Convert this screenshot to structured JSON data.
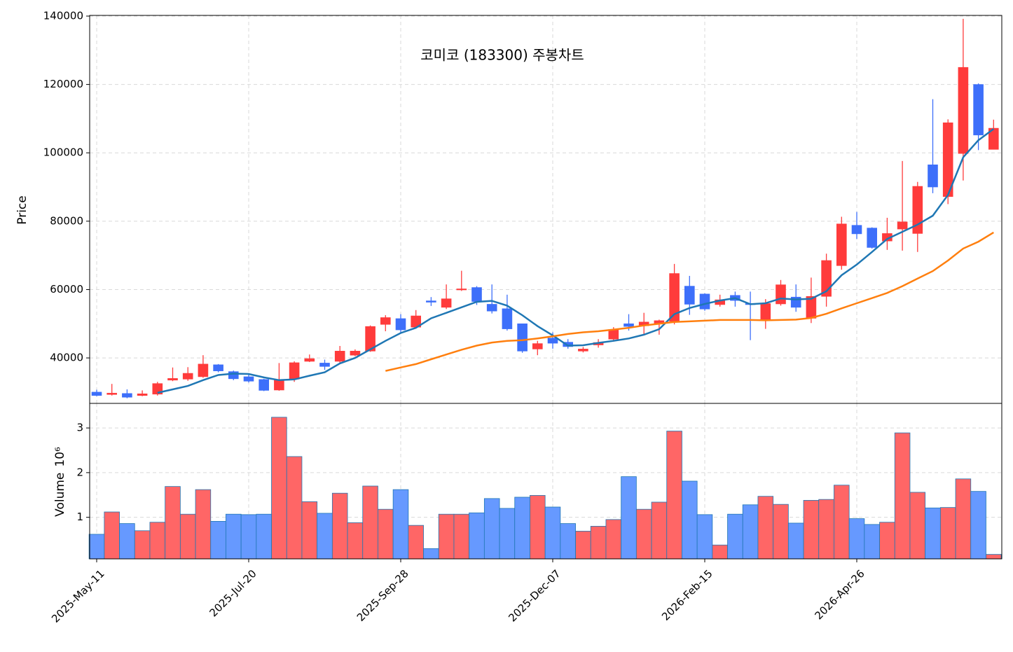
{
  "chart_data": [
    {
      "type": "candlestick",
      "title": "코미코 (183300) 주봉차트",
      "ylabel": "Price",
      "ylim": [
        26700,
        140200
      ],
      "yticks": [
        40000,
        60000,
        80000,
        100000,
        120000,
        140000
      ],
      "grid": true,
      "up_color": "#ff3b3b",
      "down_color": "#3d6ffa",
      "open": [
        30000,
        29300,
        29600,
        29000,
        29400,
        33500,
        33800,
        34500,
        38000,
        36000,
        34500,
        33700,
        30600,
        33800,
        39000,
        38500,
        39000,
        40800,
        42000,
        49800,
        51500,
        49000,
        56700,
        54800,
        59900,
        60600,
        55700,
        54400,
        50000,
        42600,
        45800,
        44600,
        42000,
        43800,
        45500,
        50000,
        49400,
        50000,
        50700,
        61000,
        58700,
        55600,
        58300,
        55900,
        51000,
        55800,
        57800,
        51600,
        58000,
        67000,
        78800,
        78000,
        74200,
        77700,
        76400,
        96500,
        87200,
        99800,
        120000,
        101000
      ],
      "high": [
        30700,
        32400,
        30800,
        30500,
        33000,
        37200,
        37300,
        40800,
        38200,
        36300,
        35200,
        33900,
        38500,
        39000,
        41000,
        39500,
        43500,
        42500,
        49500,
        52500,
        52800,
        54000,
        57800,
        61500,
        65500,
        61000,
        61500,
        58500,
        50000,
        45000,
        47500,
        45500,
        43200,
        45500,
        49000,
        52800,
        53200,
        51200,
        67500,
        64000,
        58900,
        58500,
        59400,
        59400,
        57200,
        62800,
        61500,
        63500,
        70500,
        81300,
        82700,
        78200,
        81000,
        97600,
        91500,
        115700,
        109800,
        139200,
        120300,
        109700
      ],
      "low": [
        28800,
        29000,
        28200,
        28800,
        29000,
        33200,
        33300,
        34200,
        35800,
        33500,
        32800,
        30300,
        30400,
        33000,
        38800,
        36500,
        38500,
        40500,
        41800,
        47800,
        47500,
        48800,
        55200,
        54300,
        59600,
        55500,
        53000,
        48000,
        41500,
        40800,
        42700,
        42700,
        41600,
        43000,
        44800,
        48000,
        46800,
        46800,
        49800,
        52600,
        53800,
        55000,
        55000,
        45200,
        48500,
        55300,
        53500,
        50200,
        55000,
        65800,
        74800,
        72000,
        71600,
        71400,
        71000,
        88200,
        85000,
        91900,
        100800,
        101000
      ],
      "close": [
        29000,
        29700,
        28500,
        29500,
        32500,
        34000,
        35500,
        38200,
        36200,
        33900,
        33200,
        30500,
        33600,
        38600,
        39800,
        37500,
        42000,
        42000,
        49200,
        51800,
        48200,
        52300,
        56300,
        57300,
        60200,
        56500,
        53700,
        48500,
        42000,
        44200,
        44300,
        43300,
        42600,
        44500,
        48300,
        49200,
        50500,
        50900,
        64700,
        55700,
        54300,
        57000,
        56800,
        55800,
        55900,
        61400,
        54800,
        58000,
        68500,
        79200,
        76300,
        72300,
        76400,
        79800,
        90200,
        90000,
        108800,
        125000,
        105200,
        107200
      ],
      "lines": [
        {
          "color": "#1f77b4",
          "values": [
            null,
            null,
            null,
            null,
            29800,
            30800,
            31800,
            33500,
            35000,
            35400,
            35300,
            34300,
            33500,
            33700,
            34800,
            35800,
            38400,
            40000,
            42500,
            45000,
            47300,
            48800,
            51600,
            53200,
            54800,
            56400,
            56700,
            55300,
            52500,
            49300,
            46600,
            43600,
            43700,
            44400,
            45000,
            45700,
            46800,
            48400,
            52800,
            54600,
            55800,
            56800,
            57500,
            55700,
            56000,
            57400,
            57100,
            57300,
            59500,
            64200,
            67300,
            71000,
            74800,
            76900,
            79000,
            81600,
            87700,
            98700,
            103700,
            107000
          ]
        },
        {
          "color": "#ff7f0e",
          "values": [
            null,
            null,
            null,
            null,
            null,
            null,
            null,
            null,
            null,
            null,
            null,
            null,
            null,
            null,
            null,
            null,
            null,
            null,
            null,
            36200,
            37200,
            38200,
            39600,
            41000,
            42400,
            43600,
            44500,
            45000,
            45200,
            45700,
            46300,
            47000,
            47500,
            47800,
            48300,
            48800,
            49500,
            50000,
            50500,
            50700,
            50900,
            51100,
            51100,
            51100,
            51000,
            51100,
            51200,
            51700,
            52900,
            54500,
            56000,
            57500,
            59000,
            61000,
            63200,
            65400,
            68500,
            72000,
            74000,
            76700
          ]
        }
      ]
    },
    {
      "type": "bar",
      "ylabel": "Volume",
      "offset_label": "10⁶",
      "ylim": [
        0.07,
        3.55
      ],
      "yticks": [
        1,
        2,
        3
      ],
      "grid": true,
      "up_color": "#ff6666",
      "down_color": "#6699ff",
      "edge_color": "#1f77b4",
      "categories": [
        "2025-May-11",
        null,
        null,
        null,
        null,
        null,
        null,
        null,
        null,
        null,
        "2025-Jul-20",
        null,
        null,
        null,
        null,
        null,
        null,
        null,
        null,
        null,
        "2025-Sep-28",
        null,
        null,
        null,
        null,
        null,
        null,
        null,
        null,
        null,
        "2025-Dec-07",
        null,
        null,
        null,
        null,
        null,
        null,
        null,
        null,
        null,
        "2026-Feb-15",
        null,
        null,
        null,
        null,
        null,
        null,
        null,
        null,
        null,
        "2026-Apr-26",
        null,
        null,
        null,
        null,
        null,
        null,
        null,
        null,
        null
      ],
      "values": [
        0.62,
        1.12,
        0.86,
        0.7,
        0.89,
        1.69,
        1.07,
        1.62,
        0.91,
        1.07,
        1.06,
        1.07,
        3.24,
        2.36,
        1.35,
        1.09,
        1.54,
        0.88,
        1.7,
        1.18,
        1.62,
        0.82,
        0.3,
        1.07,
        1.07,
        1.1,
        1.42,
        1.2,
        1.45,
        1.49,
        1.23,
        0.86,
        0.69,
        0.8,
        0.95,
        1.91,
        1.18,
        1.34,
        2.93,
        1.81,
        1.06,
        0.38,
        1.07,
        1.28,
        1.47,
        1.29,
        0.87,
        1.38,
        1.4,
        1.72,
        0.97,
        0.84,
        0.89,
        2.89,
        1.56,
        1.21,
        1.22,
        1.86,
        1.58,
        0.17
      ]
    }
  ]
}
